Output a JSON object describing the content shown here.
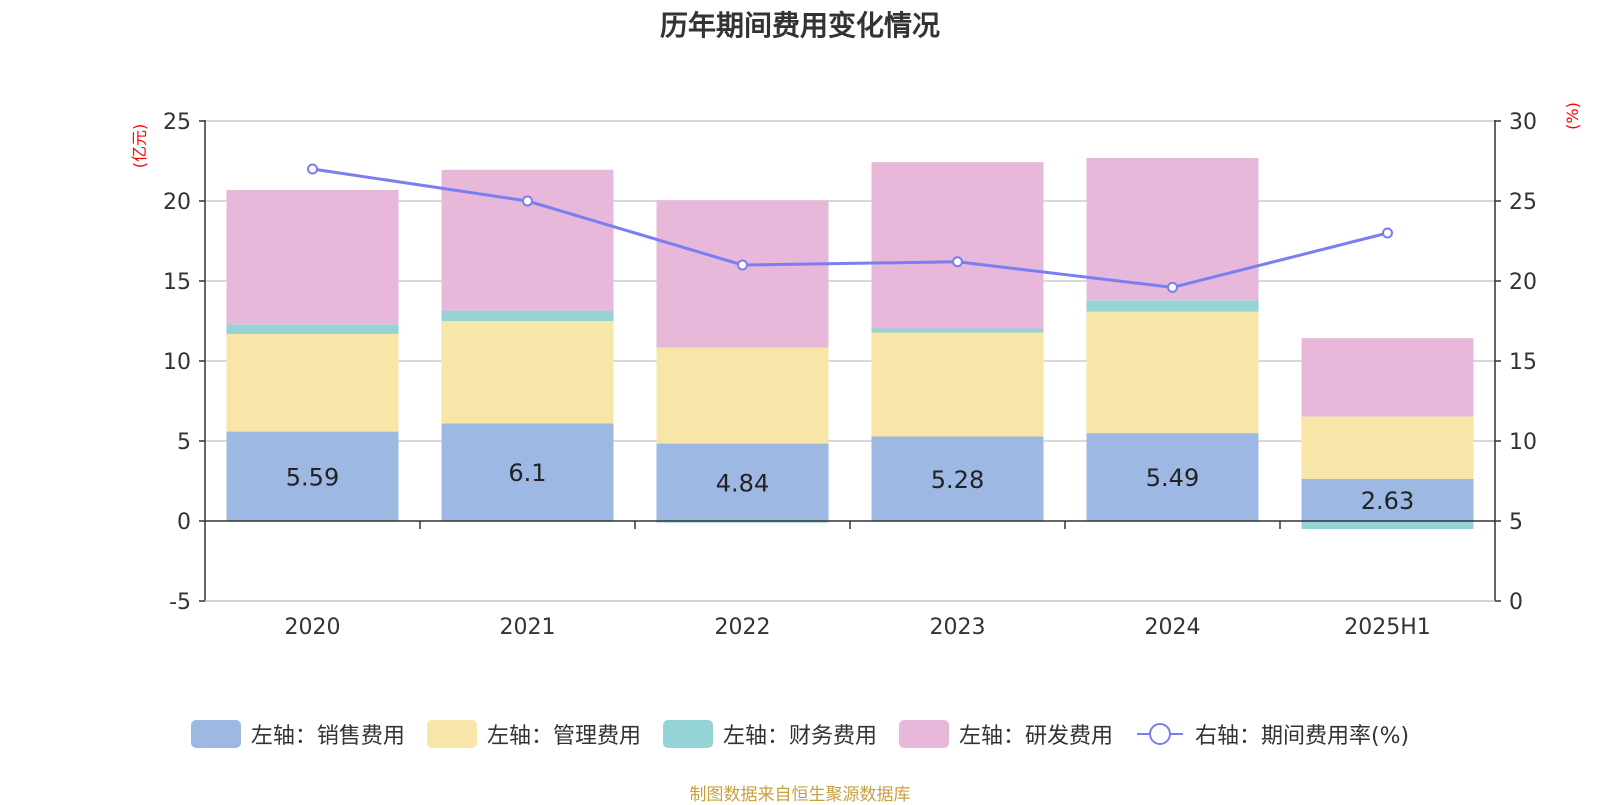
{
  "title": "历年期间费用变化情况",
  "source_note": "制图数据来自恒生聚源数据库",
  "colors": {
    "sales": "#9db8e2",
    "admin": "#f7e6a8",
    "finance": "#94d4d4",
    "rd": "#e7b8d9",
    "rate": "#7a7ef0"
  },
  "chart_data": {
    "type": "bar",
    "stacked": true,
    "title": "历年期间费用变化情况",
    "categories": [
      "2020",
      "2021",
      "2022",
      "2023",
      "2024",
      "2025H1"
    ],
    "y_left": {
      "label": "(亿元)",
      "range": [
        -5,
        25
      ],
      "ticks": [
        -5,
        0,
        5,
        10,
        15,
        20,
        25
      ]
    },
    "y_right": {
      "label": "(%)",
      "range": [
        0,
        30
      ],
      "ticks": [
        0,
        5,
        10,
        15,
        20,
        25,
        30
      ]
    },
    "grid": true,
    "legend_position": "bottom",
    "series": [
      {
        "name": "左轴：销售费用",
        "key": "sales",
        "axis": "left",
        "values": [
          5.59,
          6.1,
          4.84,
          5.28,
          5.49,
          2.63
        ],
        "show_labels": true
      },
      {
        "name": "左轴：管理费用",
        "key": "admin",
        "axis": "left",
        "values": [
          6.1,
          6.4,
          6.0,
          6.5,
          7.6,
          3.9
        ]
      },
      {
        "name": "左轴：财务费用",
        "key": "finance",
        "axis": "left",
        "values": [
          0.6,
          0.65,
          -0.1,
          0.25,
          0.7,
          -0.5
        ]
      },
      {
        "name": "左轴：研发费用",
        "key": "rd",
        "axis": "left",
        "values": [
          8.4,
          8.8,
          9.2,
          10.4,
          8.9,
          4.9
        ]
      },
      {
        "name": "右轴：期间费用率(%)",
        "key": "rate",
        "axis": "right",
        "type": "line",
        "values": [
          27.0,
          25.0,
          21.0,
          21.2,
          19.6,
          23.0
        ]
      }
    ]
  }
}
